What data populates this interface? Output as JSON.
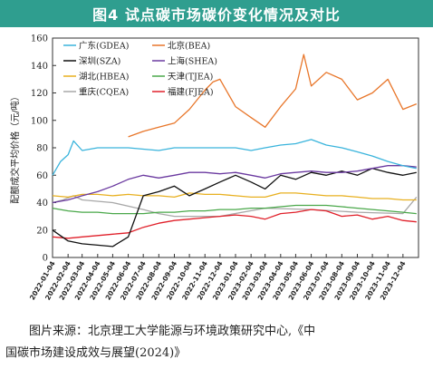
{
  "figure": {
    "title": "图4 试点碳市场碳价变化情况及对比",
    "source_line1": "图片来源：北京理工大学能源与环境政策研究中心,《中",
    "source_line2": "国碳市场建设成效与展望(2024)》"
  },
  "colors": {
    "title_bg": "#2f9e8f",
    "GDEA": "#3ab4dc",
    "BEA": "#e8762a",
    "SZA": "#111111",
    "SHEA": "#6b3aa0",
    "HBEA": "#e8b020",
    "TJEA": "#4aa84a",
    "CQEA": "#a8a8a8",
    "FJEA": "#e0202a"
  },
  "chart_data": {
    "type": "line",
    "title": "",
    "xlabel": "",
    "ylabel": "配额成交平均价格（元/吨）",
    "ylim": [
      0,
      160
    ],
    "yticks": [
      0,
      20,
      40,
      60,
      80,
      100,
      120,
      140,
      160
    ],
    "xticks": [
      "2022-01-04",
      "2022-02-04",
      "2022-03-04",
      "2022-04-04",
      "2022-05-04",
      "2022-06-04",
      "2022-07-04",
      "2022-08-04",
      "2022-09-04",
      "2022-10-04",
      "2022-11-04",
      "2022-12-04",
      "2023-01-04",
      "2023-02-04",
      "2023-03-04",
      "2023-04-04",
      "2023-05-04",
      "2023-06-04",
      "2023-07-04",
      "2023-08-04",
      "2023-09-04",
      "2023-10-04",
      "2023-11-04",
      "2023-12-04"
    ],
    "grid": false,
    "legend_position": "top-left",
    "series": [
      {
        "key": "GDEA",
        "name": "广东(GDEA)",
        "x": [
          "2022-01-04",
          "2022-01-20",
          "2022-02-04",
          "2022-02-15",
          "2022-03-04",
          "2022-04-04",
          "2022-05-04",
          "2022-06-04",
          "2022-07-04",
          "2022-08-04",
          "2022-09-04",
          "2022-10-04",
          "2022-11-04",
          "2022-12-04",
          "2023-01-04",
          "2023-02-04",
          "2023-03-04",
          "2023-04-04",
          "2023-05-04",
          "2023-06-04",
          "2023-07-04",
          "2023-08-04",
          "2023-09-04",
          "2023-10-04",
          "2023-11-04",
          "2023-12-04",
          "2023-12-31"
        ],
        "values": [
          60,
          70,
          75,
          85,
          78,
          80,
          80,
          80,
          79,
          78,
          80,
          80,
          80,
          80,
          80,
          78,
          80,
          82,
          83,
          86,
          82,
          80,
          77,
          74,
          70,
          67,
          65
        ]
      },
      {
        "key": "BEA",
        "name": "北京(BEA)",
        "x": [
          "2022-06-04",
          "2022-07-04",
          "2022-08-04",
          "2022-09-04",
          "2022-10-04",
          "2022-11-04",
          "2022-11-20",
          "2022-12-04",
          "2023-01-04",
          "2023-02-04",
          "2023-03-04",
          "2023-04-04",
          "2023-05-04",
          "2023-05-20",
          "2023-06-04",
          "2023-07-04",
          "2023-08-04",
          "2023-09-04",
          "2023-10-04",
          "2023-11-04",
          "2023-12-04",
          "2023-12-31"
        ],
        "values": [
          88,
          92,
          95,
          98,
          108,
          122,
          128,
          130,
          110,
          102,
          95,
          110,
          123,
          148,
          125,
          135,
          130,
          115,
          120,
          130,
          108,
          112
        ]
      },
      {
        "key": "SZA",
        "name": "深圳(SZA)",
        "x": [
          "2022-01-04",
          "2022-02-04",
          "2022-03-04",
          "2022-04-04",
          "2022-05-04",
          "2022-06-04",
          "2022-07-04",
          "2022-08-04",
          "2022-09-04",
          "2022-10-04",
          "2022-11-04",
          "2022-12-04",
          "2023-01-04",
          "2023-02-04",
          "2023-03-04",
          "2023-04-04",
          "2023-05-04",
          "2023-06-04",
          "2023-07-04",
          "2023-08-04",
          "2023-09-04",
          "2023-10-04",
          "2023-11-04",
          "2023-12-04",
          "2023-12-31"
        ],
        "values": [
          20,
          12,
          10,
          9,
          8,
          15,
          45,
          48,
          52,
          45,
          50,
          55,
          60,
          55,
          50,
          60,
          57,
          62,
          60,
          63,
          60,
          65,
          62,
          60,
          62
        ]
      },
      {
        "key": "SHEA",
        "name": "上海(SHEA)",
        "x": [
          "2022-01-04",
          "2022-02-04",
          "2022-03-04",
          "2022-04-04",
          "2022-05-04",
          "2022-06-04",
          "2022-07-04",
          "2022-08-04",
          "2022-09-04",
          "2022-10-04",
          "2022-11-04",
          "2022-12-04",
          "2023-01-04",
          "2023-02-04",
          "2023-03-04",
          "2023-04-04",
          "2023-05-04",
          "2023-06-04",
          "2023-07-04",
          "2023-08-04",
          "2023-09-04",
          "2023-10-04",
          "2023-11-04",
          "2023-12-04",
          "2023-12-31"
        ],
        "values": [
          40,
          42,
          45,
          48,
          52,
          57,
          60,
          58,
          60,
          62,
          62,
          61,
          62,
          60,
          58,
          61,
          62,
          63,
          62,
          62,
          63,
          65,
          67,
          67,
          66
        ]
      },
      {
        "key": "HBEA",
        "name": "湖北(HBEA)",
        "x": [
          "2022-01-04",
          "2022-02-04",
          "2022-03-04",
          "2022-04-04",
          "2022-05-04",
          "2022-06-04",
          "2022-07-04",
          "2022-08-04",
          "2022-09-04",
          "2022-10-04",
          "2022-11-04",
          "2022-12-04",
          "2023-01-04",
          "2023-02-04",
          "2023-03-04",
          "2023-04-04",
          "2023-05-04",
          "2023-06-04",
          "2023-07-04",
          "2023-08-04",
          "2023-09-04",
          "2023-10-04",
          "2023-11-04",
          "2023-12-04",
          "2023-12-31"
        ],
        "values": [
          45,
          44,
          46,
          46,
          45,
          46,
          45,
          45,
          44,
          47,
          46,
          46,
          45,
          44,
          44,
          47,
          47,
          46,
          45,
          45,
          44,
          43,
          43,
          42,
          42
        ]
      },
      {
        "key": "TJEA",
        "name": "天津(TJEA)",
        "x": [
          "2022-01-04",
          "2022-02-04",
          "2022-03-04",
          "2022-04-04",
          "2022-05-04",
          "2022-06-04",
          "2022-07-04",
          "2022-08-04",
          "2022-09-04",
          "2022-10-04",
          "2022-11-04",
          "2022-12-04",
          "2023-01-04",
          "2023-02-04",
          "2023-03-04",
          "2023-04-04",
          "2023-05-04",
          "2023-06-04",
          "2023-07-04",
          "2023-08-04",
          "2023-09-04",
          "2023-10-04",
          "2023-11-04",
          "2023-12-04",
          "2023-12-31"
        ],
        "values": [
          36,
          34,
          33,
          33,
          32,
          32,
          32,
          33,
          33,
          34,
          34,
          35,
          35,
          36,
          36,
          37,
          38,
          38,
          38,
          37,
          36,
          35,
          34,
          33,
          32
        ]
      },
      {
        "key": "CQEA",
        "name": "重庆(CQEA)",
        "x": [
          "2022-01-04",
          "2022-01-25",
          "2022-02-15",
          "2022-03-04",
          "2022-05-04",
          "2022-07-04",
          "2022-08-04",
          "2022-09-04",
          "2022-12-04",
          "2023-03-04",
          "2023-06-04",
          "2023-09-04",
          "2023-12-04",
          "2023-12-31"
        ],
        "values": [
          40,
          42,
          45,
          42,
          40,
          35,
          32,
          30,
          30,
          36,
          35,
          33,
          32,
          44
        ]
      },
      {
        "key": "FJEA",
        "name": "福建(FJEA)",
        "x": [
          "2022-01-04",
          "2022-02-04",
          "2022-03-04",
          "2022-04-04",
          "2022-05-04",
          "2022-06-04",
          "2022-07-04",
          "2022-08-04",
          "2022-09-04",
          "2022-10-04",
          "2022-11-04",
          "2022-12-04",
          "2023-01-04",
          "2023-02-04",
          "2023-03-04",
          "2023-04-04",
          "2023-05-04",
          "2023-06-04",
          "2023-07-04",
          "2023-08-04",
          "2023-09-04",
          "2023-10-04",
          "2023-11-04",
          "2023-12-04",
          "2023-12-31"
        ],
        "values": [
          15,
          14,
          15,
          16,
          17,
          18,
          22,
          25,
          27,
          28,
          29,
          30,
          31,
          30,
          28,
          32,
          33,
          35,
          34,
          30,
          31,
          28,
          30,
          27,
          26
        ]
      }
    ]
  }
}
